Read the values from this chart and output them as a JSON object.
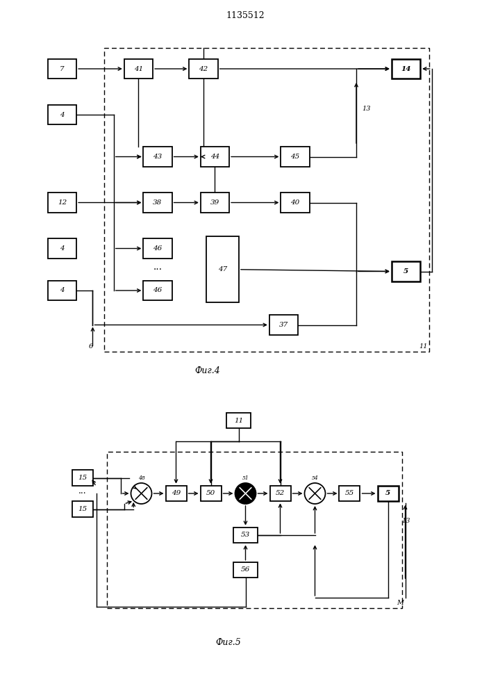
{
  "title": "1135512",
  "fig4_caption": "Фиг.4",
  "fig5_caption": "Фиг.5",
  "bg_color": "#ffffff"
}
